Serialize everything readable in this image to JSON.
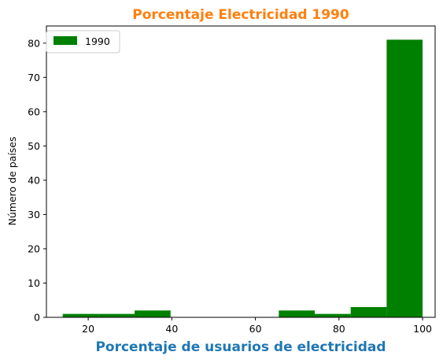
{
  "chart_data": {
    "type": "bar",
    "title": "Porcentaje Electricidad 1990",
    "xlabel": "Porcentaje de usuarios de electricidad",
    "ylabel": "Número de países",
    "xlim": [
      10,
      103
    ],
    "ylim": [
      0,
      85
    ],
    "xticks": [
      20,
      40,
      60,
      80,
      100
    ],
    "yticks": [
      0,
      10,
      20,
      30,
      40,
      50,
      60,
      70,
      80
    ],
    "grid": false,
    "legend_position": "top-left",
    "series": [
      {
        "name": "1990",
        "bins": [
          {
            "x0": 13.9,
            "x1": 22.5,
            "count": 1
          },
          {
            "x0": 22.5,
            "x1": 31.1,
            "count": 1
          },
          {
            "x0": 31.1,
            "x1": 39.7,
            "count": 2
          },
          {
            "x0": 39.7,
            "x1": 48.3,
            "count": 0
          },
          {
            "x0": 48.3,
            "x1": 56.9,
            "count": 0
          },
          {
            "x0": 56.9,
            "x1": 65.6,
            "count": 0
          },
          {
            "x0": 65.6,
            "x1": 74.2,
            "count": 2
          },
          {
            "x0": 74.2,
            "x1": 82.8,
            "count": 1
          },
          {
            "x0": 82.8,
            "x1": 91.4,
            "count": 3
          },
          {
            "x0": 91.4,
            "x1": 100.0,
            "count": 81
          }
        ]
      }
    ],
    "colors": {
      "bar": "#008000",
      "title": "#ff7f0e",
      "xlabel": "#1f77b4"
    }
  }
}
